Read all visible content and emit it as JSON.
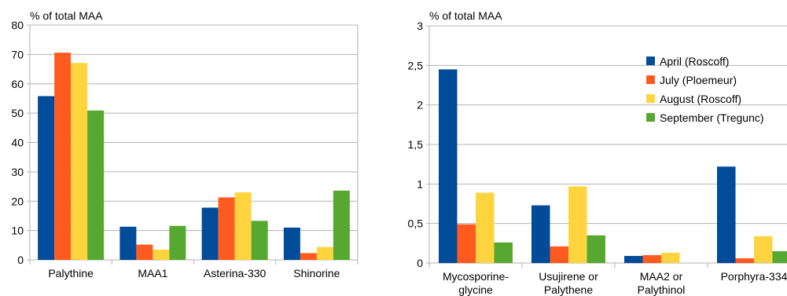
{
  "colors": {
    "april": "#004c99",
    "july": "#ff5a1f",
    "august": "#ffd43f",
    "september": "#57a831"
  },
  "chart_data": [
    {
      "type": "bar",
      "ylabel": "% of total MAA",
      "ylim": [
        0,
        80
      ],
      "yticks": [
        "0",
        "10",
        "20",
        "30",
        "40",
        "50",
        "60",
        "70",
        "80"
      ],
      "categories": [
        "Palythine",
        "MAA1",
        "Asterina-330",
        "Shinorine"
      ],
      "grid": true,
      "legend": "none",
      "series": [
        {
          "name": "April (Roscoff)",
          "color": "#004c99",
          "values": [
            55.8,
            11.3,
            17.8,
            11.0
          ]
        },
        {
          "name": "July (Ploemeur)",
          "color": "#ff5a1f",
          "values": [
            70.6,
            5.2,
            21.3,
            2.3
          ]
        },
        {
          "name": "August (Roscoff)",
          "color": "#ffd43f",
          "values": [
            67.1,
            3.5,
            23.0,
            4.4
          ]
        },
        {
          "name": "September (Tregunc)",
          "color": "#57a831",
          "values": [
            50.9,
            11.6,
            13.3,
            23.6
          ]
        }
      ]
    },
    {
      "type": "bar",
      "ylabel": "% of total MAA",
      "ylim": [
        0,
        3
      ],
      "yticks": [
        "0",
        "0,5",
        "1",
        "1,5",
        "2",
        "2,5",
        "3"
      ],
      "categories": [
        "Mycosporine-\nglycine",
        "Usujirene or\nPalythene",
        "MAA2 or\nPalythinol",
        "Porphyra-334"
      ],
      "grid": true,
      "legend": "top-right",
      "series": [
        {
          "name": "April (Roscoff)",
          "color": "#004c99",
          "values": [
            2.45,
            0.73,
            0.09,
            1.22
          ]
        },
        {
          "name": "July (Ploemeur)",
          "color": "#ff5a1f",
          "values": [
            0.49,
            0.21,
            0.1,
            0.06
          ]
        },
        {
          "name": "August (Roscoff)",
          "color": "#ffd43f",
          "values": [
            0.89,
            0.97,
            0.13,
            0.34
          ]
        },
        {
          "name": "September (Tregunc)",
          "color": "#57a831",
          "values": [
            0.26,
            0.35,
            0.0,
            0.15
          ]
        }
      ]
    }
  ]
}
